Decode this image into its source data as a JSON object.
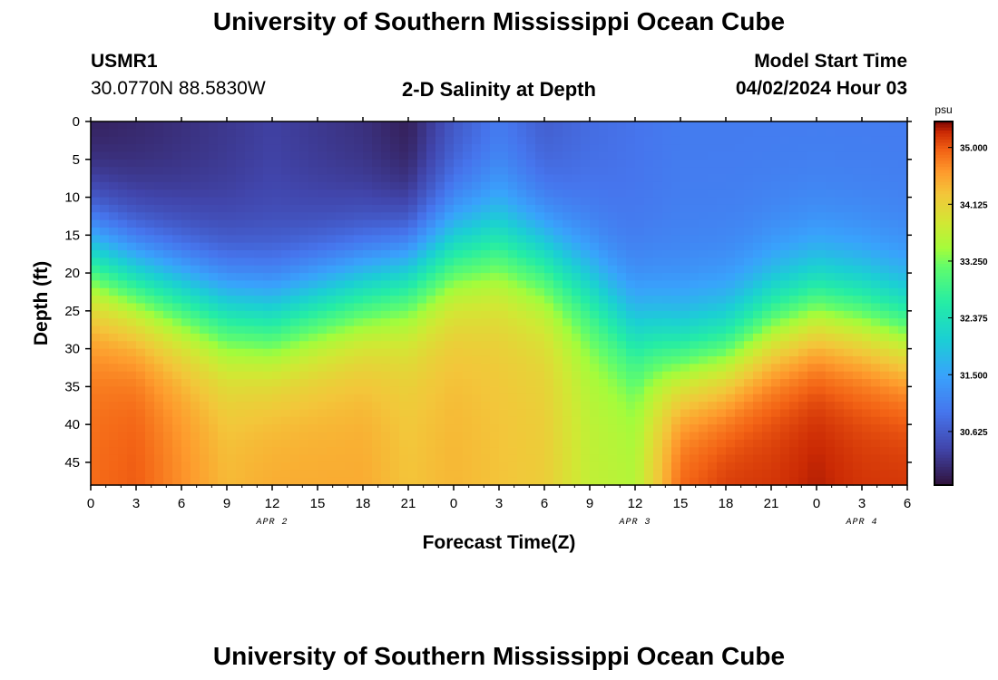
{
  "header": {
    "title": "University of Southern Mississippi Ocean Cube",
    "station_id": "USMR1",
    "coordinates": "30.0770N  88.5830W",
    "plot_title": "2-D Salinity at Depth",
    "model_start_label": "Model Start Time",
    "model_start_value": "04/02/2024 Hour 03"
  },
  "footer": {
    "title": "University of Southern Mississippi Ocean Cube"
  },
  "chart_data": {
    "type": "heatmap",
    "title": "2-D Salinity at Depth",
    "xlabel": "Forecast Time(Z)",
    "ylabel": "Depth (ft)",
    "x_ticks": [
      "0",
      "3",
      "6",
      "9",
      "12",
      "15",
      "18",
      "21",
      "0",
      "3",
      "6",
      "9",
      "12",
      "15",
      "18",
      "21",
      "0",
      "3",
      "6"
    ],
    "x_hours_from_start": [
      0,
      3,
      6,
      9,
      12,
      15,
      18,
      21,
      24,
      27,
      30,
      33,
      36,
      39,
      42,
      45,
      48,
      51,
      54
    ],
    "xlim_hours": [
      0,
      54
    ],
    "date_labels": [
      {
        "text": "APR 2",
        "hour": 12
      },
      {
        "text": "APR 3",
        "hour": 36
      },
      {
        "text": "APR 4",
        "hour": 51
      }
    ],
    "y_ticks": [
      0,
      5,
      10,
      15,
      20,
      25,
      30,
      35,
      40,
      45
    ],
    "ylim_ft": [
      0,
      48
    ],
    "colorbar": {
      "unit": "psu",
      "ticks": [
        "35.000",
        "34.125",
        "33.250",
        "32.375",
        "31.500",
        "30.625"
      ],
      "range": [
        29.8,
        35.4
      ]
    },
    "isohaline_depth_ft": {
      "hours": [
        0,
        3,
        6,
        9,
        12,
        15,
        18,
        21,
        24,
        27,
        30,
        33,
        36,
        39,
        42,
        45,
        48,
        51,
        54
      ],
      "halocline_ft": [
        14,
        17,
        19,
        21,
        22,
        20,
        18,
        16,
        13,
        12,
        14,
        18,
        24,
        27,
        26,
        22,
        20,
        21,
        23
      ],
      "surface_salinity_psu": [
        29.9,
        30.0,
        30.1,
        30.2,
        30.3,
        30.2,
        30.1,
        29.9,
        30.5,
        30.9,
        30.6,
        30.8,
        30.9,
        31.0,
        31.0,
        31.0,
        31.0,
        31.0,
        31.0
      ],
      "bottom_salinity_psu": [
        34.9,
        35.0,
        34.7,
        34.4,
        34.5,
        34.5,
        34.5,
        34.3,
        34.4,
        34.3,
        34.2,
        33.7,
        33.6,
        35.0,
        35.2,
        35.2,
        35.3,
        35.2,
        35.2
      ]
    }
  }
}
